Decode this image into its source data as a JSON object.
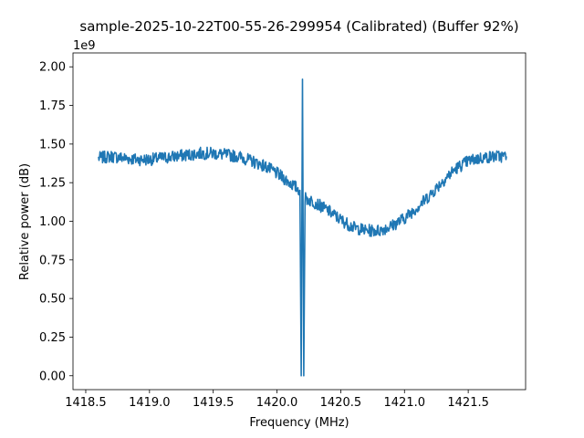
{
  "chart_data": {
    "type": "line",
    "title": "sample-2025-10-22T00-55-26-299954 (Calibrated) (Buffer 92%)",
    "xlabel": "Frequency (MHz)",
    "ylabel": "Relative power (dB)",
    "y_offset_label": "1e9",
    "xlim": [
      1418.4,
      1421.95
    ],
    "ylim": [
      -0.09,
      2.09
    ],
    "y_scale_factor": 1000000000,
    "xticks": [
      1418.5,
      1419.0,
      1419.5,
      1420.0,
      1420.5,
      1421.0,
      1421.5
    ],
    "xtick_labels": [
      "1418.5",
      "1419.0",
      "1419.5",
      "1420.0",
      "1420.5",
      "1421.0",
      "1421.5"
    ],
    "yticks": [
      0.0,
      0.25,
      0.5,
      0.75,
      1.0,
      1.25,
      1.5,
      1.75,
      2.0
    ],
    "ytick_labels": [
      "0.00",
      "0.25",
      "0.50",
      "0.75",
      "1.00",
      "1.25",
      "1.50",
      "1.75",
      "2.00"
    ],
    "grid": false,
    "line_color": "#1f77b4",
    "series": [
      {
        "x": [
          1418.6,
          1418.7,
          1418.8,
          1418.9,
          1419.0,
          1419.1,
          1419.2,
          1419.3,
          1419.4,
          1419.5,
          1419.6,
          1419.7,
          1419.8,
          1419.9,
          1420.0,
          1420.1,
          1420.18,
          1420.19,
          1420.2,
          1420.21,
          1420.22,
          1420.3,
          1420.4,
          1420.5,
          1420.6,
          1420.7,
          1420.8,
          1420.9,
          1421.0,
          1421.1,
          1421.2,
          1421.3,
          1421.4,
          1421.5,
          1421.6,
          1421.7,
          1421.8
        ],
        "y": [
          1.41,
          1.42,
          1.41,
          1.4,
          1.4,
          1.41,
          1.42,
          1.43,
          1.44,
          1.44,
          1.43,
          1.42,
          1.39,
          1.36,
          1.31,
          1.25,
          1.2,
          0.0,
          1.92,
          0.0,
          1.15,
          1.12,
          1.07,
          1.01,
          0.96,
          0.94,
          0.94,
          0.97,
          1.02,
          1.09,
          1.17,
          1.26,
          1.34,
          1.39,
          1.41,
          1.42,
          1.42
        ]
      }
    ]
  }
}
